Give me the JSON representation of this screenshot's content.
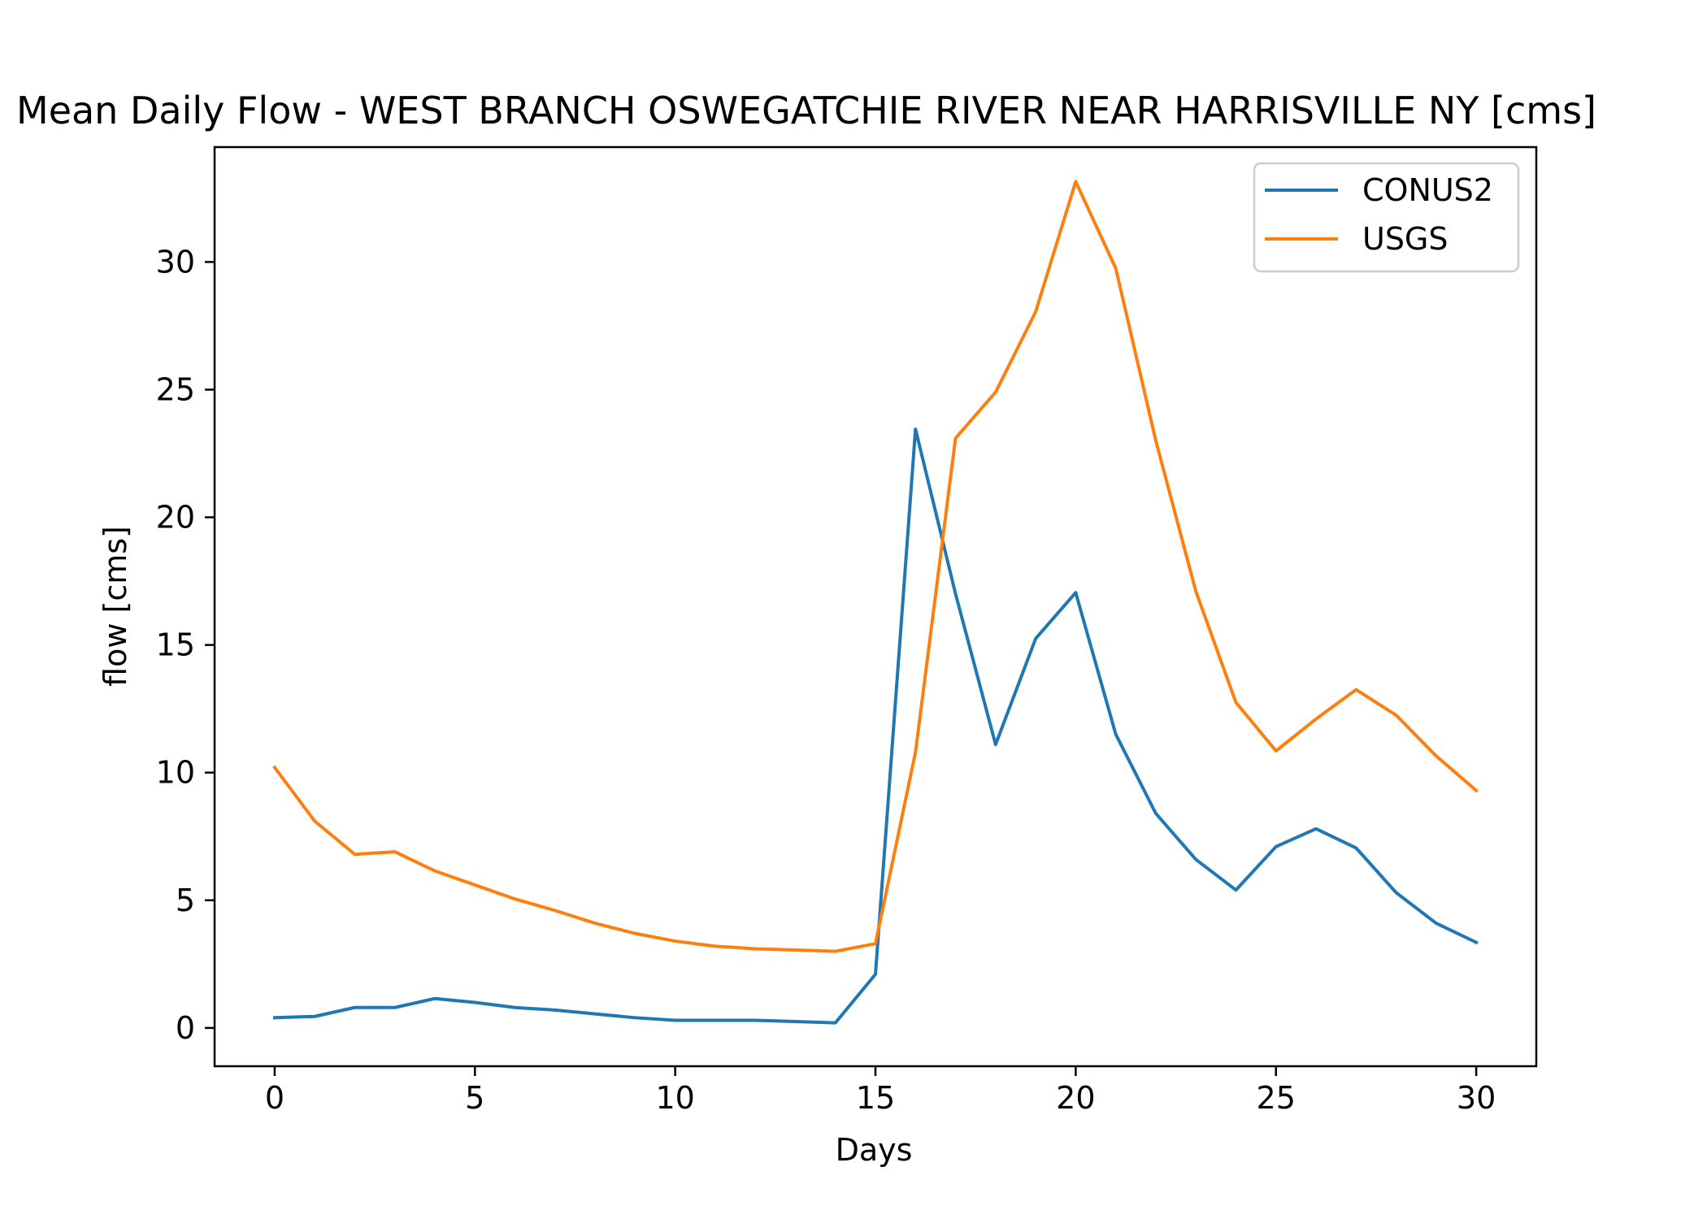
{
  "chart_data": {
    "type": "line",
    "title": "Mean Daily Flow - WEST BRANCH OSWEGATCHIE RIVER NEAR HARRISVILLE NY [cms]",
    "xlabel": "Days",
    "ylabel": "flow [cms]",
    "xlim": [
      -1.5,
      31.5
    ],
    "ylim": [
      -1.5,
      34.5
    ],
    "xticks": [
      0,
      5,
      10,
      15,
      20,
      25,
      30
    ],
    "xtick_labels": [
      "0",
      "5",
      "10",
      "15",
      "20",
      "25",
      "30"
    ],
    "yticks": [
      0,
      5,
      10,
      15,
      20,
      25,
      30
    ],
    "ytick_labels": [
      "0",
      "5",
      "10",
      "15",
      "20",
      "25",
      "30"
    ],
    "grid": false,
    "legend_position": "top-right",
    "x": [
      0,
      1,
      2,
      3,
      4,
      5,
      6,
      7,
      8,
      9,
      10,
      11,
      12,
      13,
      14,
      15,
      16,
      17,
      18,
      19,
      20,
      21,
      22,
      23,
      24,
      25,
      26,
      27,
      28,
      29,
      30
    ],
    "series": [
      {
        "name": "CONUS2",
        "color": "#1f77b4",
        "values": [
          0.4,
          0.45,
          0.8,
          0.8,
          1.15,
          1.0,
          0.8,
          0.7,
          0.55,
          0.4,
          0.3,
          0.3,
          0.3,
          0.25,
          0.2,
          2.1,
          23.45,
          17.0,
          11.1,
          15.25,
          17.05,
          11.5,
          8.4,
          6.6,
          5.4,
          7.1,
          7.8,
          7.05,
          5.3,
          4.1,
          3.35
        ]
      },
      {
        "name": "USGS",
        "color": "#ff7f0e",
        "values": [
          10.2,
          8.1,
          6.8,
          6.9,
          6.15,
          5.6,
          5.05,
          4.6,
          4.1,
          3.7,
          3.4,
          3.2,
          3.1,
          3.05,
          3.0,
          3.3,
          10.8,
          23.1,
          24.9,
          28.05,
          33.15,
          29.75,
          23.0,
          17.1,
          12.75,
          10.85,
          12.1,
          13.25,
          12.25,
          10.65,
          9.3
        ]
      }
    ]
  }
}
